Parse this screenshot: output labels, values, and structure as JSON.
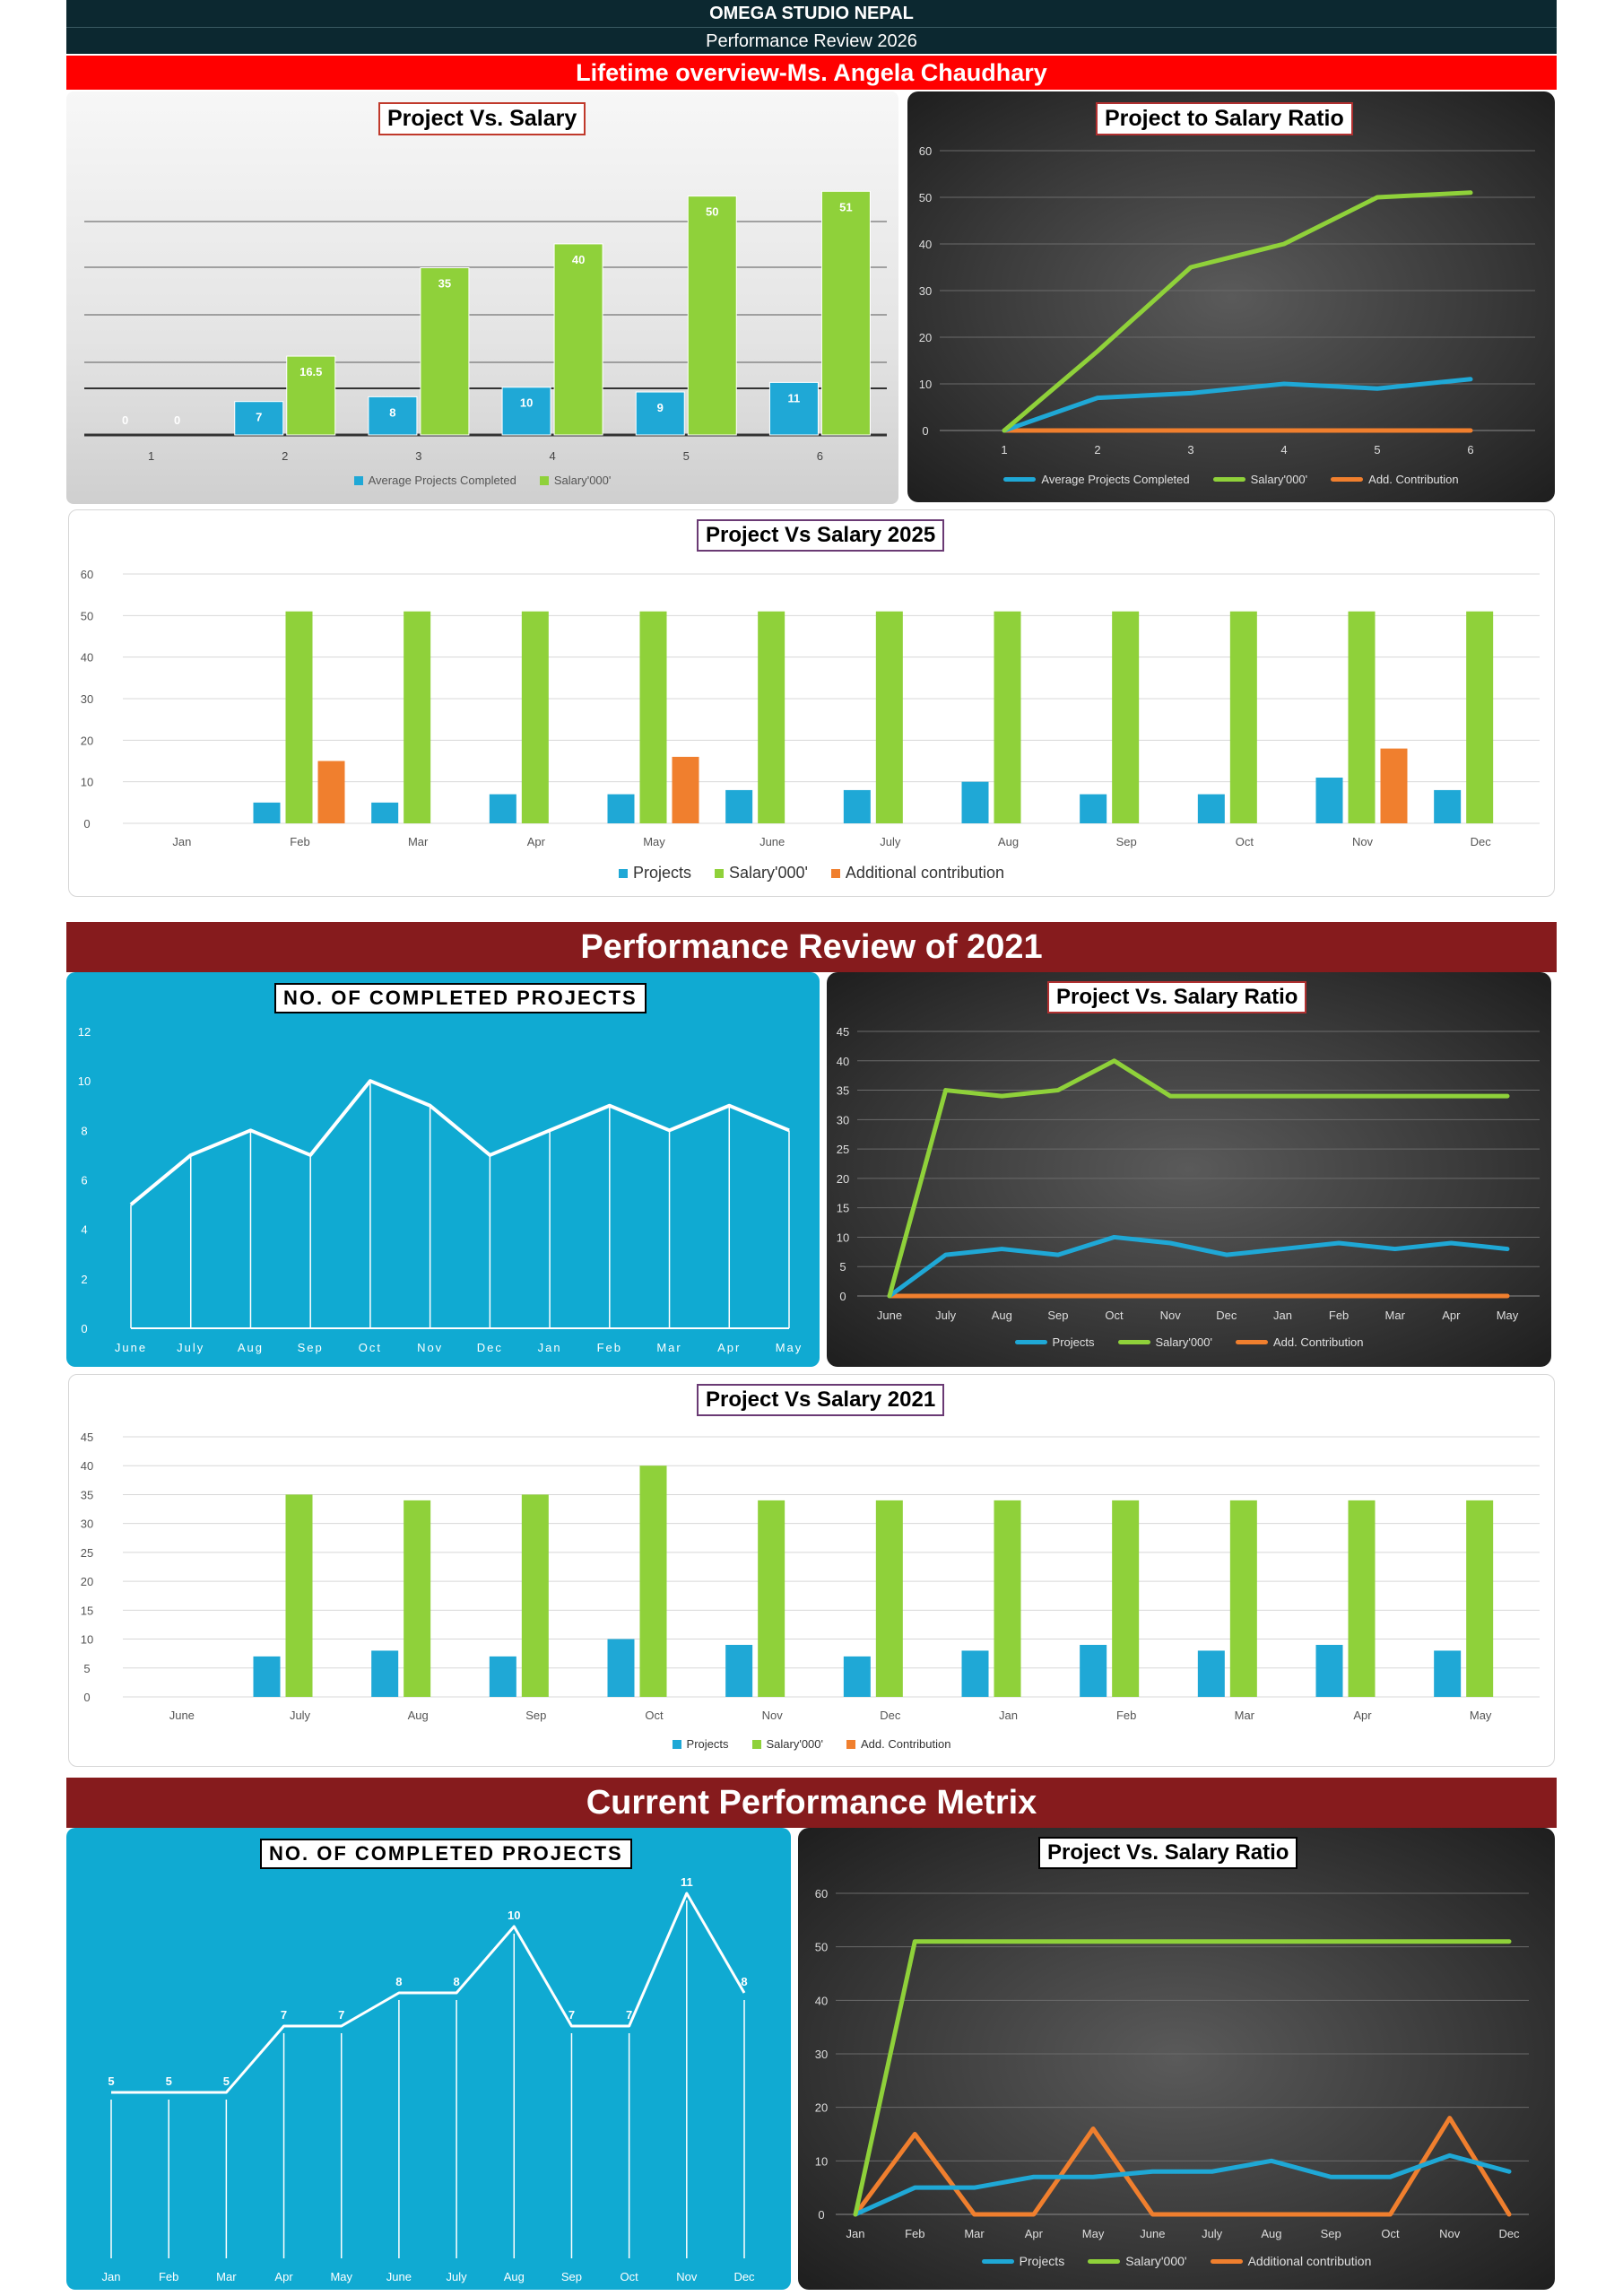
{
  "header": {
    "company": "OMEGA STUDIO NEPAL",
    "subtitle": "Performance Review 2026",
    "overview": "Lifetime overview-Ms. Angela Chaudhary"
  },
  "sections": {
    "review_2021": "Performance Review of 2021",
    "current": "Current Performance Metrix"
  },
  "colors": {
    "blue": "#1fa8d6",
    "green": "#8fd13a",
    "orange": "#f07f2e",
    "dark_red": "#861b1d",
    "cyan_panel": "#10aad2"
  },
  "chart_data": [
    {
      "id": "lifetime_bar",
      "type": "bar",
      "title": "Project Vs. Salary",
      "categories": [
        "1",
        "2",
        "3",
        "4",
        "5",
        "6"
      ],
      "series": [
        {
          "name": "Average Projects Completed",
          "values": [
            0,
            7,
            8,
            10,
            9,
            11
          ]
        },
        {
          "name": "Salary'000'",
          "values": [
            0,
            16.5,
            35,
            40,
            50,
            51
          ]
        }
      ],
      "ylim": [
        0,
        55
      ],
      "legend": "bottom"
    },
    {
      "id": "lifetime_line",
      "type": "line",
      "title": "Project to Salary Ratio",
      "x": [
        "1",
        "2",
        "3",
        "4",
        "5",
        "6"
      ],
      "yticks": [
        0,
        10,
        20,
        30,
        40,
        50,
        60
      ],
      "series": [
        {
          "name": "Average Projects Completed",
          "values": [
            0,
            7,
            8,
            10,
            9,
            11
          ]
        },
        {
          "name": "Salary'000'",
          "values": [
            0,
            17,
            35,
            40,
            50,
            51
          ]
        },
        {
          "name": "Add. Contribution",
          "values": [
            0,
            0,
            0,
            0,
            0,
            0
          ]
        }
      ],
      "ylim": [
        0,
        60
      ],
      "legend": "bottom"
    },
    {
      "id": "salary_2025",
      "type": "bar",
      "title": "Project Vs Salary 2025",
      "categories": [
        "Jan",
        "Feb",
        "Mar",
        "Apr",
        "May",
        "June",
        "July",
        "Aug",
        "Sep",
        "Oct",
        "Nov",
        "Dec"
      ],
      "yticks": [
        0,
        10,
        20,
        30,
        40,
        50,
        60
      ],
      "series": [
        {
          "name": "Projects",
          "values": [
            0,
            5,
            5,
            7,
            7,
            8,
            8,
            10,
            7,
            7,
            11,
            8
          ]
        },
        {
          "name": "Salary'000'",
          "values": [
            0,
            51,
            51,
            51,
            51,
            51,
            51,
            51,
            51,
            51,
            51,
            51
          ]
        },
        {
          "name": "Additional contribution",
          "values": [
            0,
            15,
            0,
            0,
            16,
            0,
            0,
            0,
            0,
            0,
            18,
            0
          ]
        }
      ],
      "ylim": [
        0,
        60
      ],
      "legend": "bottom"
    },
    {
      "id": "projects_2021",
      "type": "area",
      "title": "NO. OF COMPLETED PROJECTS",
      "x": [
        "June",
        "July",
        "Aug",
        "Sep",
        "Oct",
        "Nov",
        "Dec",
        "Jan",
        "Feb",
        "Mar",
        "Apr",
        "May"
      ],
      "yticks": [
        0,
        2,
        4,
        6,
        8,
        10,
        12
      ],
      "values": [
        5,
        7,
        8,
        7,
        10,
        9,
        7,
        8,
        9,
        8,
        9,
        8
      ],
      "ylim": [
        0,
        12
      ]
    },
    {
      "id": "ratio_2021",
      "type": "line",
      "title": "Project Vs. Salary Ratio",
      "x": [
        "June",
        "July",
        "Aug",
        "Sep",
        "Oct",
        "Nov",
        "Dec",
        "Jan",
        "Feb",
        "Mar",
        "Apr",
        "May"
      ],
      "yticks": [
        0,
        5,
        10,
        15,
        20,
        25,
        30,
        35,
        40,
        45
      ],
      "series": [
        {
          "name": "Projects",
          "values": [
            0,
            7,
            8,
            7,
            10,
            9,
            7,
            8,
            9,
            8,
            9,
            8
          ]
        },
        {
          "name": "Salary'000'",
          "values": [
            0,
            35,
            34,
            35,
            40,
            34,
            34,
            34,
            34,
            34,
            34,
            34
          ]
        },
        {
          "name": "Add. Contribution",
          "values": [
            0,
            0,
            0,
            0,
            0,
            0,
            0,
            0,
            0,
            0,
            0,
            0
          ]
        }
      ],
      "ylim": [
        0,
        45
      ],
      "legend": "bottom"
    },
    {
      "id": "salary_2021",
      "type": "bar",
      "title": "Project Vs Salary 2021",
      "categories": [
        "June",
        "July",
        "Aug",
        "Sep",
        "Oct",
        "Nov",
        "Dec",
        "Jan",
        "Feb",
        "Mar",
        "Apr",
        "May"
      ],
      "yticks": [
        0,
        5,
        10,
        15,
        20,
        25,
        30,
        35,
        40,
        45
      ],
      "series": [
        {
          "name": "Projects",
          "values": [
            0,
            7,
            8,
            7,
            10,
            9,
            7,
            8,
            9,
            8,
            9,
            8
          ]
        },
        {
          "name": "Salary'000'",
          "values": [
            0,
            35,
            34,
            35,
            40,
            34,
            34,
            34,
            34,
            34,
            34,
            34
          ]
        },
        {
          "name": "Add. Contribution",
          "values": [
            0,
            0,
            0,
            0,
            0,
            0,
            0,
            0,
            0,
            0,
            0,
            0
          ]
        }
      ],
      "ylim": [
        0,
        45
      ],
      "legend": "bottom"
    },
    {
      "id": "projects_current",
      "type": "area",
      "title": "NO. OF COMPLETED PROJECTS",
      "x": [
        "Jan",
        "Feb",
        "Mar",
        "Apr",
        "May",
        "June",
        "July",
        "Aug",
        "Sep",
        "Oct",
        "Nov",
        "Dec"
      ],
      "values": [
        5,
        5,
        5,
        7,
        7,
        8,
        8,
        10,
        7,
        7,
        11,
        8
      ],
      "ylim": [
        0,
        12
      ]
    },
    {
      "id": "ratio_current",
      "type": "line",
      "title": "Project Vs. Salary Ratio",
      "x": [
        "Jan",
        "Feb",
        "Mar",
        "Apr",
        "May",
        "June",
        "July",
        "Aug",
        "Sep",
        "Oct",
        "Nov",
        "Dec"
      ],
      "yticks": [
        0,
        10,
        20,
        30,
        40,
        50,
        60
      ],
      "series": [
        {
          "name": "Projects",
          "values": [
            0,
            5,
            5,
            7,
            7,
            8,
            8,
            10,
            7,
            7,
            11,
            8
          ]
        },
        {
          "name": "Salary'000'",
          "values": [
            0,
            51,
            51,
            51,
            51,
            51,
            51,
            51,
            51,
            51,
            51,
            51
          ]
        },
        {
          "name": "Additional contribution",
          "values": [
            0,
            15,
            0,
            0,
            16,
            0,
            0,
            0,
            0,
            0,
            18,
            0
          ]
        }
      ],
      "ylim": [
        0,
        60
      ],
      "legend": "bottom"
    }
  ]
}
